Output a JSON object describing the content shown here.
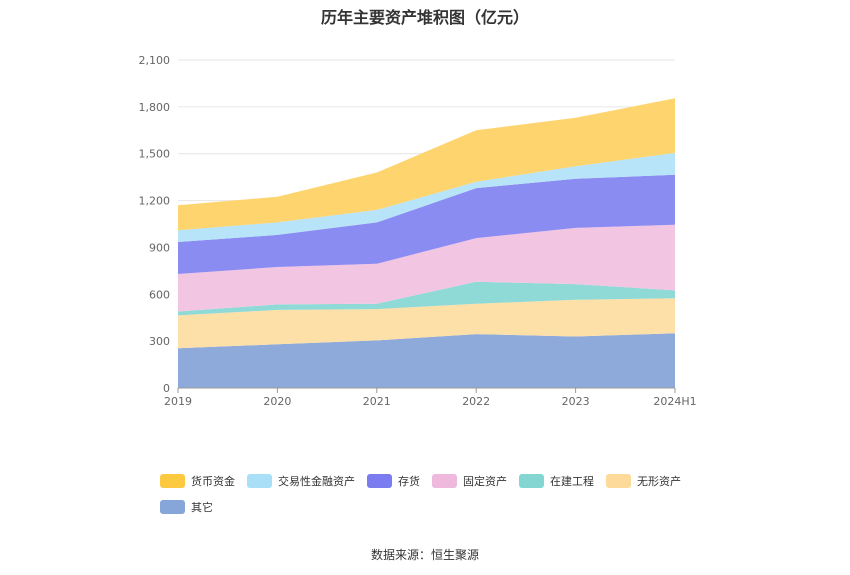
{
  "chart_data": {
    "type": "area",
    "stacked": true,
    "title": "历年主要资产堆积图（亿元）",
    "xlabel": "",
    "ylabel": "",
    "categories": [
      "2019",
      "2020",
      "2021",
      "2022",
      "2023",
      "2024H1"
    ],
    "yticks": [
      "0",
      "300",
      "600",
      "900",
      "1,200",
      "1,500",
      "1,800",
      "2,100"
    ],
    "ylim": [
      0,
      2100
    ],
    "grid": true,
    "legend_position": "bottom",
    "series": [
      {
        "name": "其它",
        "color": "#8eaadb",
        "values": [
          255,
          280,
          305,
          345,
          330,
          350
        ]
      },
      {
        "name": "无形资产",
        "color": "#fde0a8",
        "values": [
          210,
          220,
          200,
          195,
          235,
          225
        ]
      },
      {
        "name": "在建工程",
        "color": "#8fd9d6",
        "values": [
          25,
          35,
          35,
          140,
          100,
          50
        ]
      },
      {
        "name": "固定资产",
        "color": "#f2c6e2",
        "values": [
          240,
          240,
          255,
          280,
          360,
          420
        ]
      },
      {
        "name": "存货",
        "color": "#8b8cf2",
        "values": [
          205,
          205,
          265,
          320,
          315,
          320
        ]
      },
      {
        "name": "交易性金融资产",
        "color": "#b7e4f8",
        "values": [
          75,
          80,
          80,
          40,
          80,
          140
        ]
      },
      {
        "name": "货币资金",
        "color": "#fed46e",
        "values": [
          160,
          165,
          240,
          330,
          310,
          350
        ]
      }
    ]
  },
  "legend": {
    "items": [
      {
        "label": "货币资金",
        "color": "#fcc940"
      },
      {
        "label": "交易性金融资产",
        "color": "#a9dff7"
      },
      {
        "label": "存货",
        "color": "#7b7cef"
      },
      {
        "label": "固定资产",
        "color": "#eeb9dc"
      },
      {
        "label": "在建工程",
        "color": "#84d6d3"
      },
      {
        "label": "无形资产",
        "color": "#fdd99a"
      },
      {
        "label": "其它",
        "color": "#86a6d9"
      }
    ]
  },
  "source": "数据来源：恒生聚源"
}
